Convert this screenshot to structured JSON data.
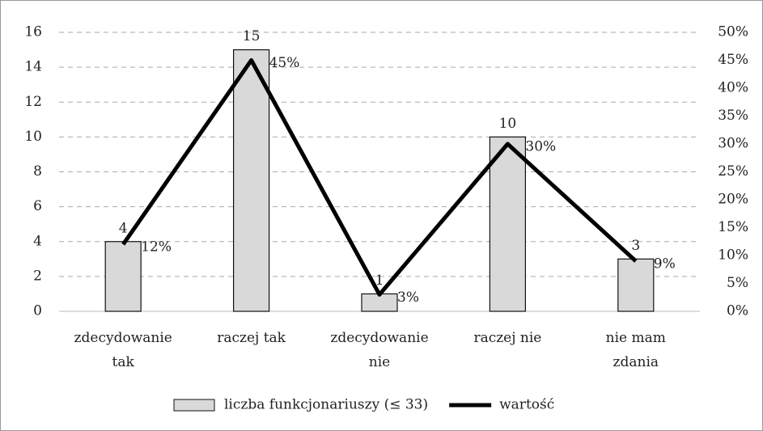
{
  "chart_data": {
    "type": "combo",
    "categories": [
      "zdecydowanie\ntak",
      "raczej tak",
      "zdecydowanie\nnie",
      "raczej nie",
      "nie mam\nzdania"
    ],
    "series": [
      {
        "name": "liczba funkcjonariuszy (≤ 33)",
        "type": "bar",
        "color": "#d9d9d9",
        "values": [
          4,
          15,
          1,
          10,
          3
        ]
      },
      {
        "name": "wartość",
        "type": "line",
        "axis": "y2",
        "color": "#000000",
        "values": [
          12,
          45,
          3,
          30,
          9
        ],
        "value_labels": [
          "12%",
          "45%",
          "3%",
          "30%",
          "9%"
        ]
      }
    ],
    "ylim": [
      0,
      16
    ],
    "yticks": [
      0,
      2,
      4,
      6,
      8,
      10,
      12,
      14,
      16
    ],
    "y2lim": [
      0,
      50
    ],
    "y2ticks": [
      {
        "value": 0,
        "label": "0%"
      },
      {
        "value": 5,
        "label": "5%"
      },
      {
        "value": 10,
        "label": "10%"
      },
      {
        "value": 15,
        "label": "15%"
      },
      {
        "value": 20,
        "label": "20%"
      },
      {
        "value": 25,
        "label": "25%"
      },
      {
        "value": 30,
        "label": "30%"
      },
      {
        "value": 35,
        "label": "35%"
      },
      {
        "value": 40,
        "label": "40%"
      },
      {
        "value": 45,
        "label": "45%"
      },
      {
        "value": 50,
        "label": "50%"
      }
    ],
    "grid": true,
    "legend": "bottom"
  }
}
